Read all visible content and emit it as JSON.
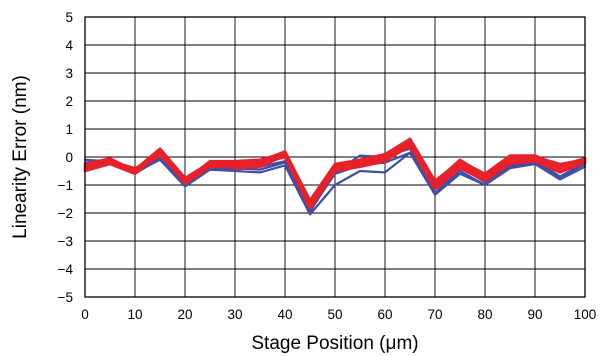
{
  "chart_data": {
    "type": "line",
    "xlabel": "Stage Position (μm)",
    "ylabel": "Linearity Error (nm)",
    "xlim": [
      0,
      100
    ],
    "ylim": [
      -5,
      5
    ],
    "xticks": [
      0,
      10,
      20,
      30,
      40,
      50,
      60,
      70,
      80,
      90,
      100
    ],
    "yticks": [
      5,
      4,
      3,
      2,
      1,
      0,
      -1,
      -2,
      -3,
      -4,
      -5
    ],
    "xtick_labels": [
      "0",
      "10",
      "20",
      "30",
      "40",
      "50",
      "60",
      "70",
      "80",
      "90",
      "100"
    ],
    "ytick_labels": [
      "5",
      "4",
      "3",
      "2",
      "1",
      "0",
      "−1",
      "−2",
      "−3",
      "−4",
      "−5"
    ],
    "grid": true,
    "colors": {
      "blue_series": "#3e4fa8",
      "red_series": "#e8202a"
    },
    "x": [
      0,
      5,
      10,
      15,
      20,
      25,
      30,
      35,
      40,
      45,
      50,
      55,
      60,
      65,
      70,
      75,
      80,
      85,
      90,
      95,
      100
    ],
    "series": [
      {
        "color": "blue",
        "values": [
          -0.1,
          -0.15,
          -0.55,
          -0.1,
          -1.05,
          -0.45,
          -0.5,
          -0.55,
          -0.3,
          -2.05,
          -1.0,
          -0.5,
          -0.55,
          0.15,
          -1.35,
          -0.6,
          -1.0,
          -0.4,
          -0.25,
          -0.8,
          -0.35
        ]
      },
      {
        "color": "blue",
        "values": [
          -0.2,
          -0.1,
          -0.5,
          0.0,
          -0.95,
          -0.4,
          -0.4,
          -0.45,
          -0.2,
          -1.95,
          -0.55,
          0.05,
          0.0,
          0.3,
          -1.3,
          -0.35,
          -0.9,
          -0.3,
          -0.1,
          -0.7,
          -0.2
        ]
      },
      {
        "color": "blue",
        "values": [
          -0.3,
          -0.15,
          -0.6,
          -0.05,
          -1.0,
          -0.35,
          -0.45,
          -0.35,
          -0.15,
          -1.9,
          -0.6,
          -0.3,
          -0.2,
          0.15,
          -1.3,
          -0.5,
          -1.0,
          -0.35,
          -0.2,
          -0.75,
          -0.25
        ]
      },
      {
        "color": "red",
        "values": [
          -0.35,
          -0.1,
          -0.45,
          0.3,
          -0.75,
          -0.2,
          -0.25,
          -0.15,
          0.2,
          -1.55,
          -0.25,
          -0.1,
          0.1,
          0.65,
          -0.85,
          -0.15,
          -0.6,
          0.05,
          0.05,
          -0.3,
          -0.05
        ]
      },
      {
        "color": "red",
        "values": [
          -0.45,
          -0.2,
          -0.55,
          0.2,
          -0.85,
          -0.15,
          -0.15,
          -0.1,
          0.15,
          -1.6,
          -0.3,
          -0.25,
          -0.05,
          0.45,
          -0.95,
          -0.25,
          -0.7,
          -0.05,
          0.0,
          -0.25,
          -0.1
        ]
      },
      {
        "color": "red",
        "values": [
          -0.25,
          -0.05,
          -0.5,
          0.25,
          -0.8,
          -0.3,
          -0.3,
          -0.3,
          0.1,
          -1.7,
          -0.35,
          -0.2,
          0.0,
          0.55,
          -1.0,
          -0.2,
          -0.75,
          -0.1,
          -0.05,
          -0.4,
          -0.05
        ]
      },
      {
        "color": "red",
        "values": [
          -0.4,
          -0.15,
          -0.4,
          0.1,
          -0.9,
          -0.25,
          -0.2,
          -0.2,
          0.05,
          -1.75,
          -0.45,
          -0.3,
          -0.1,
          0.5,
          -1.1,
          -0.3,
          -0.8,
          -0.2,
          -0.1,
          -0.5,
          -0.15
        ]
      },
      {
        "color": "red",
        "values": [
          -0.5,
          -0.25,
          -0.6,
          0.15,
          -0.95,
          -0.35,
          -0.35,
          -0.25,
          0.0,
          -1.85,
          -0.5,
          -0.35,
          -0.15,
          0.4,
          -1.15,
          -0.4,
          -0.85,
          -0.25,
          -0.15,
          -0.55,
          -0.2
        ]
      },
      {
        "color": "red",
        "values": [
          -0.3,
          -0.1,
          -0.5,
          0.05,
          -0.8,
          -0.2,
          -0.4,
          -0.35,
          0.05,
          -1.65,
          -0.4,
          -0.15,
          0.05,
          0.35,
          -0.9,
          -0.1,
          -0.65,
          0.0,
          -0.1,
          -0.35,
          -0.1
        ]
      }
    ]
  }
}
